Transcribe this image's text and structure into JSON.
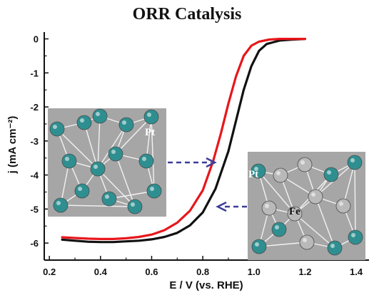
{
  "chart_data": {
    "type": "line",
    "title": "ORR Catalysis",
    "xlabel": "E / V (vs. RHE)",
    "ylabel": "j (mA cm⁻²)",
    "xlim": [
      0.18,
      1.45
    ],
    "ylim": [
      -6.5,
      0.2
    ],
    "x_ticks": [
      "0.2",
      "0.4",
      "0.6",
      "0.8",
      "1.0",
      "1.2",
      "1.4"
    ],
    "y_ticks": [
      "0",
      "-1",
      "-2",
      "-3",
      "-4",
      "-5",
      "-6"
    ],
    "grid": false,
    "series": [
      {
        "color": "#111111",
        "points": [
          [
            0.25,
            -5.9
          ],
          [
            0.3,
            -5.93
          ],
          [
            0.35,
            -5.96
          ],
          [
            0.4,
            -5.97
          ],
          [
            0.45,
            -5.97
          ],
          [
            0.5,
            -5.95
          ],
          [
            0.55,
            -5.93
          ],
          [
            0.6,
            -5.89
          ],
          [
            0.65,
            -5.82
          ],
          [
            0.7,
            -5.7
          ],
          [
            0.75,
            -5.48
          ],
          [
            0.8,
            -5.1
          ],
          [
            0.85,
            -4.4
          ],
          [
            0.9,
            -3.3
          ],
          [
            0.93,
            -2.4
          ],
          [
            0.96,
            -1.5
          ],
          [
            0.99,
            -0.8
          ],
          [
            1.02,
            -0.35
          ],
          [
            1.05,
            -0.15
          ],
          [
            1.1,
            -0.05
          ],
          [
            1.15,
            -0.02
          ],
          [
            1.2,
            0.0
          ]
        ]
      },
      {
        "color": "#e8161b",
        "points": [
          [
            0.25,
            -5.83
          ],
          [
            0.3,
            -5.85
          ],
          [
            0.35,
            -5.87
          ],
          [
            0.4,
            -5.88
          ],
          [
            0.45,
            -5.88
          ],
          [
            0.5,
            -5.86
          ],
          [
            0.55,
            -5.82
          ],
          [
            0.6,
            -5.75
          ],
          [
            0.65,
            -5.62
          ],
          [
            0.7,
            -5.4
          ],
          [
            0.75,
            -5.05
          ],
          [
            0.8,
            -4.45
          ],
          [
            0.84,
            -3.6
          ],
          [
            0.87,
            -2.8
          ],
          [
            0.9,
            -1.9
          ],
          [
            0.93,
            -1.1
          ],
          [
            0.96,
            -0.5
          ],
          [
            0.99,
            -0.2
          ],
          [
            1.02,
            -0.08
          ],
          [
            1.06,
            -0.02
          ],
          [
            1.1,
            0.0
          ],
          [
            1.2,
            0.0
          ]
        ]
      }
    ],
    "annotations": [
      {
        "text": "Pt",
        "insert": "left"
      },
      {
        "text": "Pt",
        "insert": "right"
      },
      {
        "text": "Fe",
        "insert": "right"
      }
    ]
  },
  "colors": {
    "pt_atom": "#2f8f90",
    "fe_atom": "#b9b9b9",
    "insert_bg": "#a6a6a6",
    "arrow": "#3c3c9a"
  }
}
